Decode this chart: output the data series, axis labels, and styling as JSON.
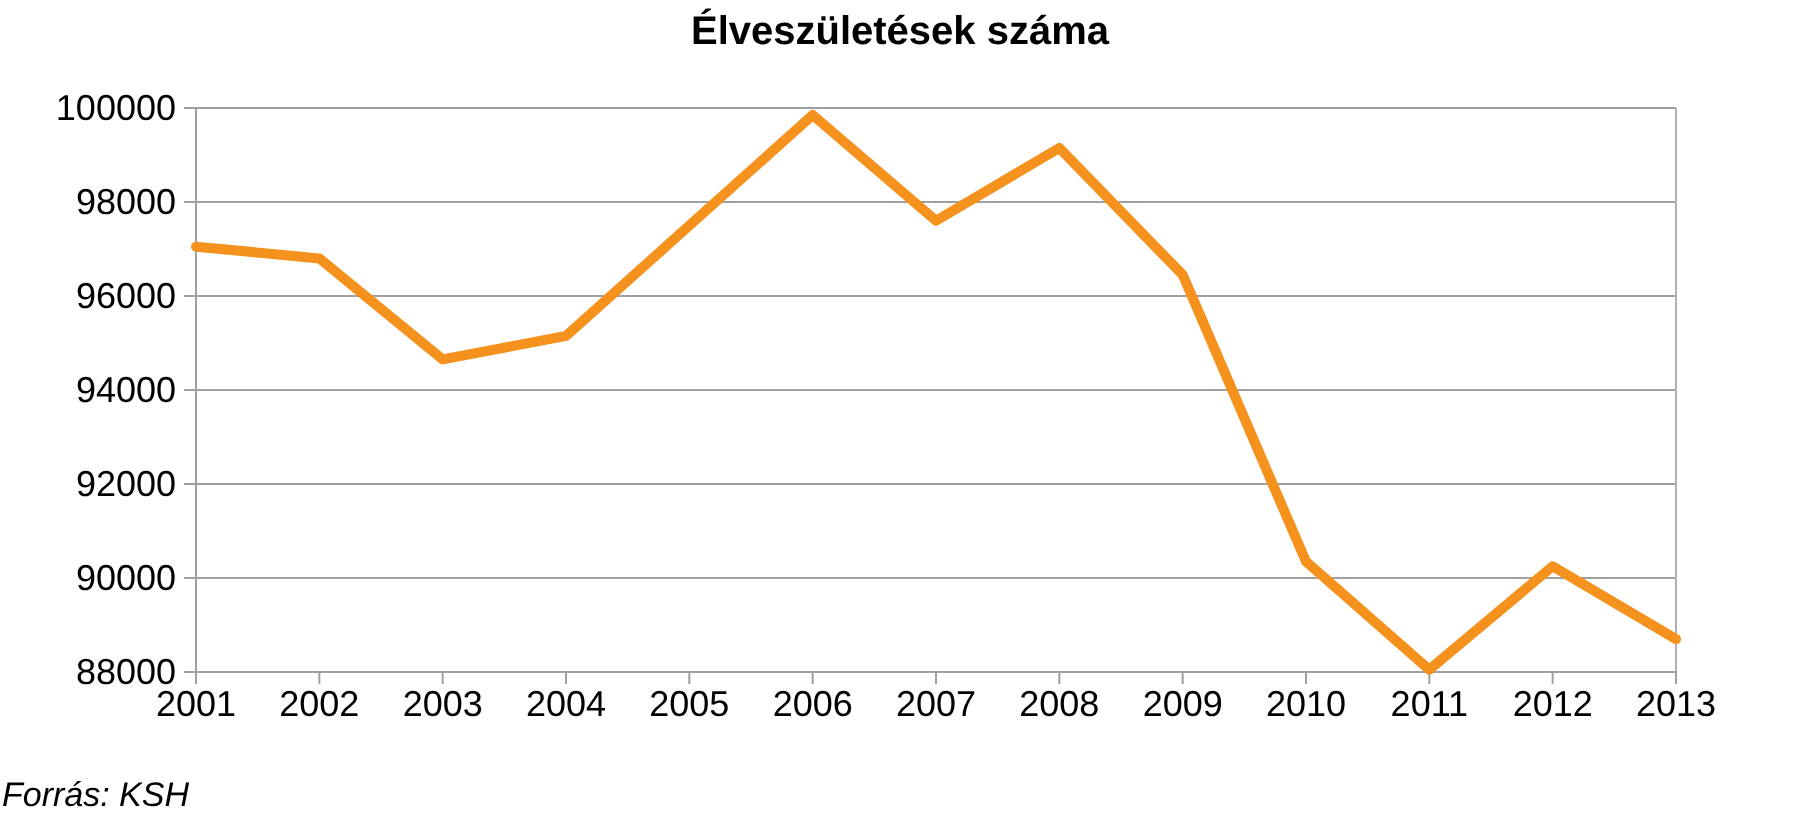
{
  "chart_data": {
    "type": "line",
    "title": "Élveszületések száma",
    "categories": [
      "2001",
      "2002",
      "2003",
      "2004",
      "2005",
      "2006",
      "2007",
      "2008",
      "2009",
      "2010",
      "2011",
      "2012",
      "2013"
    ],
    "series": [
      {
        "color": "#f5921e",
        "values": [
          97050,
          96800,
          94650,
          95150,
          97500,
          99850,
          97600,
          99150,
          96450,
          90350,
          88050,
          90250,
          88700
        ]
      }
    ],
    "ylim": [
      88000,
      100000
    ],
    "yticks": [
      88000,
      90000,
      92000,
      94000,
      96000,
      98000,
      100000
    ],
    "grid": "y",
    "marker": "none",
    "line_style": "solid",
    "annotations": [
      "Forrás: KSH"
    ]
  }
}
